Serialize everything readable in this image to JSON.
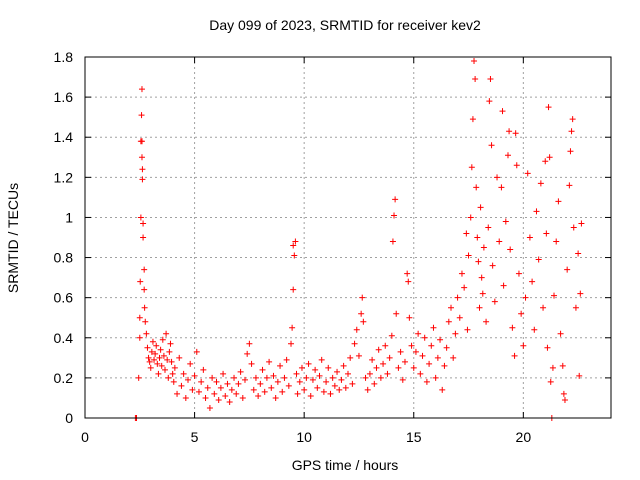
{
  "chart_data": {
    "type": "scatter",
    "title": "Day 099 of 2023, SRMTID for receiver kev2",
    "xlabel": "GPS time / hours",
    "ylabel": "SRMTID / TECUs",
    "xlim": [
      0,
      24
    ],
    "ylim": [
      0,
      1.8
    ],
    "xticks": [
      "0",
      "5",
      "10",
      "15",
      "20"
    ],
    "xtick_values": [
      0,
      5,
      10,
      15,
      20
    ],
    "yticks": [
      "0",
      "0.2",
      "0.4",
      "0.6",
      "0.8",
      "1",
      "1.2",
      "1.4",
      "1.6",
      "1.8"
    ],
    "ytick_values": [
      0,
      0.2,
      0.4,
      0.6,
      0.8,
      1.0,
      1.2,
      1.4,
      1.6,
      1.8
    ],
    "grid": true,
    "marker": "plus",
    "color": "#ff0000",
    "series": [
      {
        "name": "kev2",
        "points": [
          [
            2.3,
            0.0
          ],
          [
            2.35,
            0.0
          ],
          [
            2.45,
            0.2
          ],
          [
            2.5,
            0.4
          ],
          [
            2.5,
            0.5
          ],
          [
            2.52,
            0.68
          ],
          [
            2.55,
            1.0
          ],
          [
            2.55,
            1.38
          ],
          [
            2.6,
            1.38
          ],
          [
            2.6,
            1.3
          ],
          [
            2.62,
            1.24
          ],
          [
            2.62,
            1.19
          ],
          [
            2.58,
            1.51
          ],
          [
            2.6,
            1.64
          ],
          [
            2.65,
            0.97
          ],
          [
            2.65,
            0.9
          ],
          [
            2.7,
            0.74
          ],
          [
            2.7,
            0.64
          ],
          [
            2.72,
            0.55
          ],
          [
            2.75,
            0.48
          ],
          [
            2.8,
            0.42
          ],
          [
            2.85,
            0.35
          ],
          [
            2.9,
            0.3
          ],
          [
            2.95,
            0.28
          ],
          [
            3.0,
            0.25
          ],
          [
            3.05,
            0.33
          ],
          [
            3.1,
            0.38
          ],
          [
            3.15,
            0.29
          ],
          [
            3.2,
            0.32
          ],
          [
            3.25,
            0.36
          ],
          [
            3.3,
            0.27
          ],
          [
            3.35,
            0.22
          ],
          [
            3.4,
            0.3
          ],
          [
            3.45,
            0.34
          ],
          [
            3.5,
            0.26
          ],
          [
            3.55,
            0.39
          ],
          [
            3.6,
            0.31
          ],
          [
            3.65,
            0.24
          ],
          [
            3.7,
            0.42
          ],
          [
            3.75,
            0.29
          ],
          [
            3.8,
            0.2
          ],
          [
            3.85,
            0.33
          ],
          [
            3.9,
            0.37
          ],
          [
            3.95,
            0.28
          ],
          [
            4.0,
            0.22
          ],
          [
            4.05,
            0.18
          ],
          [
            4.1,
            0.25
          ],
          [
            4.2,
            0.12
          ],
          [
            4.3,
            0.3
          ],
          [
            4.4,
            0.16
          ],
          [
            4.5,
            0.22
          ],
          [
            4.6,
            0.1
          ],
          [
            4.7,
            0.19
          ],
          [
            4.8,
            0.27
          ],
          [
            4.9,
            0.14
          ],
          [
            5.0,
            0.21
          ],
          [
            5.1,
            0.33
          ],
          [
            5.2,
            0.13
          ],
          [
            5.3,
            0.18
          ],
          [
            5.4,
            0.24
          ],
          [
            5.5,
            0.1
          ],
          [
            5.6,
            0.15
          ],
          [
            5.7,
            0.05
          ],
          [
            5.8,
            0.2
          ],
          [
            5.9,
            0.12
          ],
          [
            6.0,
            0.18
          ],
          [
            6.1,
            0.09
          ],
          [
            6.2,
            0.15
          ],
          [
            6.3,
            0.22
          ],
          [
            6.4,
            0.11
          ],
          [
            6.5,
            0.17
          ],
          [
            6.6,
            0.08
          ],
          [
            6.7,
            0.14
          ],
          [
            6.8,
            0.2
          ],
          [
            6.9,
            0.12
          ],
          [
            7.0,
            0.17
          ],
          [
            7.1,
            0.23
          ],
          [
            7.2,
            0.1
          ],
          [
            7.3,
            0.19
          ],
          [
            7.4,
            0.32
          ],
          [
            7.5,
            0.37
          ],
          [
            7.6,
            0.27
          ],
          [
            7.7,
            0.14
          ],
          [
            7.8,
            0.2
          ],
          [
            7.9,
            0.11
          ],
          [
            8.0,
            0.17
          ],
          [
            8.1,
            0.24
          ],
          [
            8.2,
            0.13
          ],
          [
            8.3,
            0.2
          ],
          [
            8.4,
            0.28
          ],
          [
            8.5,
            0.15
          ],
          [
            8.6,
            0.21
          ],
          [
            8.7,
            0.1
          ],
          [
            8.8,
            0.18
          ],
          [
            8.9,
            0.26
          ],
          [
            9.0,
            0.13
          ],
          [
            9.1,
            0.2
          ],
          [
            9.2,
            0.29
          ],
          [
            9.3,
            0.16
          ],
          [
            9.4,
            0.37
          ],
          [
            9.45,
            0.45
          ],
          [
            9.5,
            0.64
          ],
          [
            9.5,
            0.86
          ],
          [
            9.55,
            0.81
          ],
          [
            9.6,
            0.88
          ],
          [
            9.65,
            0.22
          ],
          [
            9.7,
            0.12
          ],
          [
            9.8,
            0.18
          ],
          [
            9.9,
            0.25
          ],
          [
            10.0,
            0.14
          ],
          [
            10.1,
            0.2
          ],
          [
            10.2,
            0.27
          ],
          [
            10.3,
            0.11
          ],
          [
            10.4,
            0.19
          ],
          [
            10.5,
            0.24
          ],
          [
            10.6,
            0.15
          ],
          [
            10.7,
            0.21
          ],
          [
            10.8,
            0.29
          ],
          [
            10.9,
            0.13
          ],
          [
            11.0,
            0.18
          ],
          [
            11.1,
            0.25
          ],
          [
            11.2,
            0.12
          ],
          [
            11.3,
            0.2
          ],
          [
            11.4,
            0.16
          ],
          [
            11.5,
            0.23
          ],
          [
            11.6,
            0.14
          ],
          [
            11.7,
            0.19
          ],
          [
            11.8,
            0.26
          ],
          [
            11.9,
            0.15
          ],
          [
            12.0,
            0.22
          ],
          [
            12.1,
            0.3
          ],
          [
            12.2,
            0.17
          ],
          [
            12.3,
            0.37
          ],
          [
            12.4,
            0.44
          ],
          [
            12.5,
            0.31
          ],
          [
            12.6,
            0.52
          ],
          [
            12.65,
            0.6
          ],
          [
            12.7,
            0.48
          ],
          [
            12.8,
            0.2
          ],
          [
            12.9,
            0.14
          ],
          [
            13.0,
            0.22
          ],
          [
            13.1,
            0.29
          ],
          [
            13.2,
            0.17
          ],
          [
            13.3,
            0.25
          ],
          [
            13.4,
            0.34
          ],
          [
            13.5,
            0.2
          ],
          [
            13.6,
            0.27
          ],
          [
            13.7,
            0.36
          ],
          [
            13.8,
            0.22
          ],
          [
            13.9,
            0.3
          ],
          [
            14.0,
            0.41
          ],
          [
            14.05,
            0.88
          ],
          [
            14.1,
            1.01
          ],
          [
            14.15,
            1.09
          ],
          [
            14.2,
            0.52
          ],
          [
            14.3,
            0.25
          ],
          [
            14.4,
            0.33
          ],
          [
            14.5,
            0.19
          ],
          [
            14.6,
            0.28
          ],
          [
            14.7,
            0.72
          ],
          [
            14.75,
            0.68
          ],
          [
            14.8,
            0.5
          ],
          [
            14.9,
            0.36
          ],
          [
            15.0,
            0.25
          ],
          [
            15.1,
            0.33
          ],
          [
            15.2,
            0.42
          ],
          [
            15.3,
            0.22
          ],
          [
            15.4,
            0.31
          ],
          [
            15.5,
            0.4
          ],
          [
            15.6,
            0.18
          ],
          [
            15.7,
            0.27
          ],
          [
            15.8,
            0.36
          ],
          [
            15.9,
            0.45
          ],
          [
            16.0,
            0.2
          ],
          [
            16.1,
            0.3
          ],
          [
            16.2,
            0.39
          ],
          [
            16.3,
            0.14
          ],
          [
            16.4,
            0.26
          ],
          [
            16.5,
            0.35
          ],
          [
            16.6,
            0.48
          ],
          [
            16.7,
            0.55
          ],
          [
            16.8,
            0.3
          ],
          [
            16.9,
            0.42
          ],
          [
            17.0,
            0.6
          ],
          [
            17.1,
            0.5
          ],
          [
            17.2,
            0.72
          ],
          [
            17.3,
            0.65
          ],
          [
            17.4,
            0.92
          ],
          [
            17.45,
            0.44
          ],
          [
            17.5,
            0.81
          ],
          [
            17.6,
            1.0
          ],
          [
            17.65,
            1.25
          ],
          [
            17.7,
            1.49
          ],
          [
            17.75,
            1.78
          ],
          [
            17.8,
            1.69
          ],
          [
            17.85,
            1.15
          ],
          [
            17.9,
            0.9
          ],
          [
            17.95,
            0.78
          ],
          [
            18.0,
            0.55
          ],
          [
            18.05,
            1.05
          ],
          [
            18.1,
            0.7
          ],
          [
            18.15,
            0.62
          ],
          [
            18.2,
            0.85
          ],
          [
            18.3,
            0.48
          ],
          [
            18.4,
            0.95
          ],
          [
            18.45,
            1.58
          ],
          [
            18.5,
            1.69
          ],
          [
            18.55,
            1.36
          ],
          [
            18.6,
            0.76
          ],
          [
            18.7,
            0.58
          ],
          [
            18.8,
            1.2
          ],
          [
            18.9,
            0.88
          ],
          [
            19.0,
            1.15
          ],
          [
            19.05,
            1.53
          ],
          [
            19.1,
            0.66
          ],
          [
            19.2,
            0.98
          ],
          [
            19.3,
            1.31
          ],
          [
            19.35,
            1.43
          ],
          [
            19.4,
            0.84
          ],
          [
            19.5,
            0.45
          ],
          [
            19.6,
            0.31
          ],
          [
            19.65,
            1.42
          ],
          [
            19.7,
            1.26
          ],
          [
            19.8,
            0.72
          ],
          [
            19.9,
            0.52
          ],
          [
            20.0,
            0.36
          ],
          [
            20.1,
            0.6
          ],
          [
            20.2,
            1.22
          ],
          [
            20.3,
            0.9
          ],
          [
            20.4,
            0.68
          ],
          [
            20.5,
            0.44
          ],
          [
            20.6,
            1.03
          ],
          [
            20.7,
            0.79
          ],
          [
            20.8,
            1.17
          ],
          [
            20.9,
            0.55
          ],
          [
            21.0,
            1.28
          ],
          [
            21.05,
            0.92
          ],
          [
            21.1,
            0.35
          ],
          [
            21.15,
            1.55
          ],
          [
            21.2,
            1.3
          ],
          [
            21.25,
            0.18
          ],
          [
            21.3,
            0.0
          ],
          [
            21.35,
            0.25
          ],
          [
            21.4,
            0.61
          ],
          [
            21.5,
            0.88
          ],
          [
            21.6,
            1.08
          ],
          [
            21.7,
            0.42
          ],
          [
            21.8,
            0.26
          ],
          [
            21.85,
            0.12
          ],
          [
            21.9,
            0.09
          ],
          [
            22.0,
            0.74
          ],
          [
            22.1,
            1.16
          ],
          [
            22.15,
            1.33
          ],
          [
            22.2,
            1.43
          ],
          [
            22.25,
            1.49
          ],
          [
            22.3,
            0.95
          ],
          [
            22.4,
            0.55
          ],
          [
            22.5,
            0.82
          ],
          [
            22.55,
            0.21
          ],
          [
            22.6,
            0.62
          ],
          [
            22.65,
            0.97
          ]
        ]
      }
    ]
  }
}
